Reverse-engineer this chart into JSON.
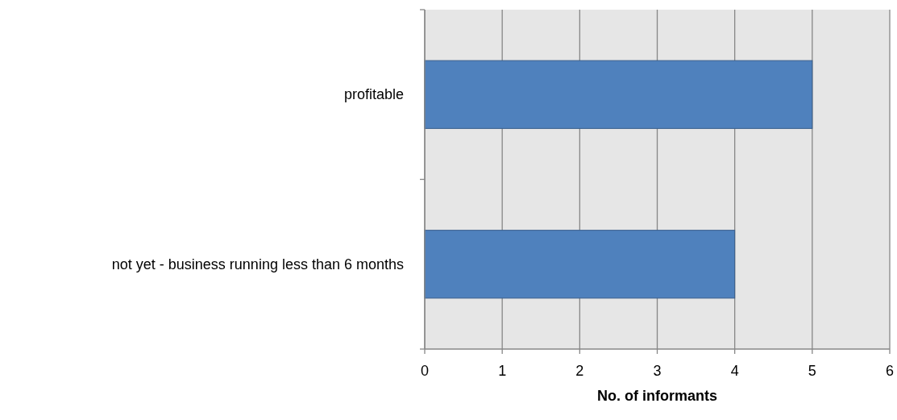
{
  "chart_data": {
    "type": "bar",
    "orientation": "horizontal",
    "categories": [
      "profitable",
      "not yet - business running less than 6 months"
    ],
    "values": [
      5,
      4
    ],
    "color": "#4f81bd",
    "xlim": [
      0,
      6
    ],
    "xticks": [
      0,
      1,
      2,
      3,
      4,
      5,
      6
    ],
    "xlabel": "No. of informants",
    "grid": "x"
  }
}
